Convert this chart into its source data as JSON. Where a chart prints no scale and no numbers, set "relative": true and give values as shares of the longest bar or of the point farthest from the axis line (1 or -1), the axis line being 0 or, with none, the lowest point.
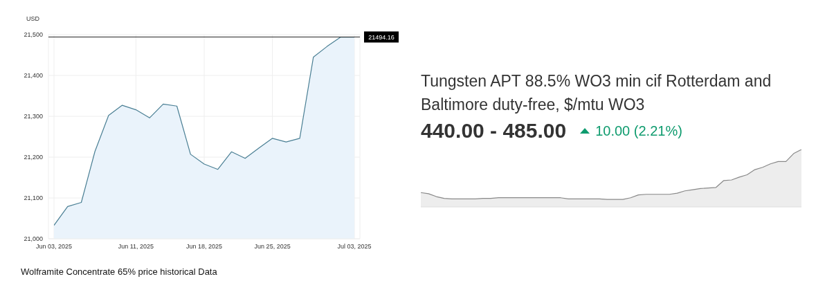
{
  "chart_data": [
    {
      "type": "area",
      "ylabel": "USD",
      "categories": [
        "Jun 03, 2025",
        null,
        null,
        null,
        null,
        null,
        "Jun 11, 2025",
        null,
        null,
        null,
        null,
        "Jun 18, 2025",
        null,
        null,
        null,
        null,
        "Jun 25, 2025",
        null,
        null,
        null,
        null,
        null,
        "Jul 03, 2025"
      ],
      "series": [
        {
          "color": "#4a7f94",
          "values": [
            21033,
            21079,
            21089,
            21214,
            21302,
            21327,
            21316,
            21296,
            21330,
            21325,
            21207,
            21183,
            21170,
            21213,
            21197,
            21222,
            21246,
            21237,
            21246,
            21445,
            21471,
            21494,
            21494
          ]
        }
      ],
      "ylim": [
        21000,
        21500
      ],
      "yticks": [
        {
          "value": 21000,
          "label": "21,000"
        },
        {
          "value": 21100,
          "label": "21,100"
        },
        {
          "value": 21200,
          "label": "21,200"
        },
        {
          "value": 21300,
          "label": "21,300"
        },
        {
          "value": 21400,
          "label": "21,400"
        },
        {
          "value": 21500,
          "label": "21,500"
        }
      ],
      "grid": true,
      "ref_lines": [
        {
          "axis": "y",
          "value": 21494.16,
          "label": "21494.16",
          "color": "#222222"
        }
      ],
      "annotations": [
        "Wolframite Concentrate 65% price historical Data"
      ]
    },
    {
      "type": "area",
      "relative": true,
      "title": "Tungsten APT 88.5% WO3 min cif Rotterdam and Baltimore duty-free, $/mtu WO3",
      "subtitle": "440.00 - 485.00",
      "annotations": [
        "10.00 (2.21%)"
      ],
      "categories": [
        null,
        null,
        null,
        null,
        null,
        null,
        null,
        null,
        null,
        null,
        null,
        null,
        null,
        null,
        null,
        null,
        null,
        null,
        null,
        null,
        null,
        null,
        null,
        null,
        null,
        null,
        null,
        null,
        null,
        null,
        null,
        null,
        null,
        null,
        null,
        null,
        null,
        null,
        null,
        null,
        null,
        null,
        null,
        null,
        null,
        null,
        null,
        null,
        null,
        null
      ],
      "series": [
        {
          "color": "#888888",
          "values": [
            0.25,
            0.23,
            0.18,
            0.15,
            0.14,
            0.14,
            0.14,
            0.14,
            0.15,
            0.15,
            0.16,
            0.16,
            0.16,
            0.16,
            0.16,
            0.16,
            0.16,
            0.16,
            0.16,
            0.14,
            0.14,
            0.14,
            0.14,
            0.14,
            0.13,
            0.13,
            0.13,
            0.16,
            0.21,
            0.22,
            0.22,
            0.22,
            0.22,
            0.24,
            0.28,
            0.3,
            0.32,
            0.33,
            0.34,
            0.46,
            0.47,
            0.52,
            0.56,
            0.65,
            0.69,
            0.75,
            0.79,
            0.79,
            0.93,
            1
          ]
        }
      ]
    }
  ]
}
